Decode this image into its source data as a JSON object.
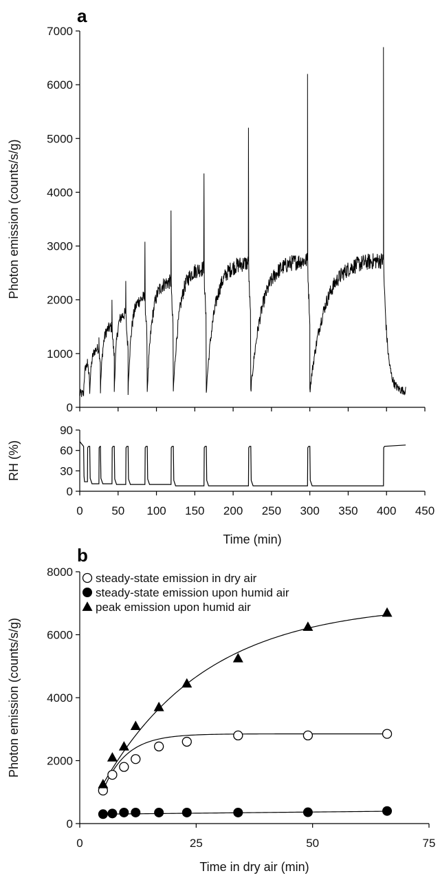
{
  "chart_data": [
    {
      "panel": "a",
      "type": "line",
      "xlabel": "",
      "ylabel": "Photon emission (counts/s/g)",
      "xlim": [
        0,
        450
      ],
      "ylim": [
        0,
        7000
      ],
      "yticks": [
        0,
        1000,
        2000,
        3000,
        4000,
        5000,
        6000,
        7000
      ],
      "grid": false,
      "cycles": [
        {
          "dry_start": 5,
          "dry_end": 10,
          "peak": 900,
          "steady": 800,
          "base": 250
        },
        {
          "dry_start": 13,
          "dry_end": 25,
          "peak": 1300,
          "steady": 1100,
          "base": 300
        },
        {
          "dry_start": 27,
          "dry_end": 42,
          "peak": 2000,
          "steady": 1500,
          "base": 300
        },
        {
          "dry_start": 45,
          "dry_end": 60,
          "peak": 2350,
          "steady": 1750,
          "base": 300
        },
        {
          "dry_start": 63,
          "dry_end": 85,
          "peak": 3080,
          "steady": 2050,
          "base": 300
        },
        {
          "dry_start": 88,
          "dry_end": 119,
          "peak": 3660,
          "steady": 2350,
          "base": 300
        },
        {
          "dry_start": 122,
          "dry_end": 162,
          "peak": 4350,
          "steady": 2600,
          "base": 300
        },
        {
          "dry_start": 165,
          "dry_end": 220,
          "peak": 5200,
          "steady": 2700,
          "base": 300
        },
        {
          "dry_start": 223,
          "dry_end": 297,
          "peak": 6200,
          "steady": 2750,
          "base": 300
        },
        {
          "dry_start": 300,
          "dry_end": 396,
          "peak": 6700,
          "steady": 2750,
          "base": 300
        }
      ],
      "tail_end": 425
    },
    {
      "panel": "",
      "type": "line",
      "xlabel": "Time (min)",
      "ylabel": "RH (%)",
      "xlim": [
        0,
        450
      ],
      "ylim": [
        0,
        90
      ],
      "xticks": [
        0,
        50,
        100,
        150,
        200,
        250,
        300,
        350,
        400,
        450
      ],
      "yticks": [
        0,
        30,
        60,
        90
      ],
      "humid_level": 66,
      "dry_level": 8
    },
    {
      "panel": "b",
      "type": "scatter",
      "xlabel": "Time in dry air (min)",
      "ylabel": "Photon emission (counts/s/g)",
      "xlim": [
        0,
        75
      ],
      "ylim": [
        0,
        8000
      ],
      "xticks": [
        0,
        25,
        50,
        75
      ],
      "yticks": [
        0,
        2000,
        4000,
        6000,
        8000
      ],
      "legend_position": "top-left",
      "series": [
        {
          "name": "steady-state emission in dry air",
          "marker": "open-circle",
          "x": [
            5,
            7,
            9.5,
            12,
            17,
            23,
            34,
            49,
            66
          ],
          "y": [
            1050,
            1550,
            1800,
            2050,
            2450,
            2600,
            2800,
            2800,
            2850
          ],
          "fit": {
            "kind": "exp",
            "ymax": 2850,
            "y0": 0,
            "rate": 0.2
          }
        },
        {
          "name": "steady-state emission upon humid air",
          "marker": "filled-circle",
          "x": [
            5,
            7,
            9.5,
            12,
            17,
            23,
            34,
            49,
            66
          ],
          "y": [
            300,
            320,
            350,
            350,
            350,
            350,
            350,
            360,
            400
          ],
          "fit": {
            "kind": "linear",
            "a": 300,
            "b": 1.5
          }
        },
        {
          "name": "peak emission upon humid air",
          "marker": "filled-triangle",
          "x": [
            5,
            7,
            9.5,
            12,
            17,
            23,
            34,
            49,
            66
          ],
          "y": [
            1250,
            2100,
            2450,
            3100,
            3700,
            4450,
            5250,
            6250,
            6700
          ],
          "fit": {
            "kind": "exp",
            "ymax": 7000,
            "y0": 0,
            "rate": 0.045
          }
        }
      ]
    }
  ],
  "panel_labels": {
    "a": "a",
    "b": "b"
  }
}
